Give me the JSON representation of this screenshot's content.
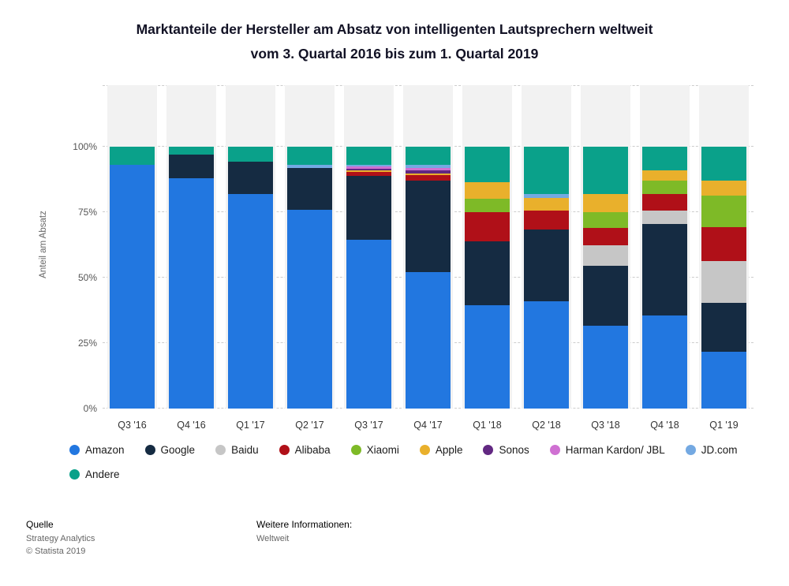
{
  "title": {
    "line1": "Marktanteile der Hersteller am Absatz von intelligenten Lautsprechern weltweit",
    "line2": "vom 3. Quartal 2016 bis zum 1. Quartal 2019"
  },
  "chart_data": {
    "type": "bar",
    "stacked": true,
    "ylabel": "Anteil am Absatz",
    "xlabel": "",
    "ylim": [
      0,
      100
    ],
    "yticks": [
      "0%",
      "25%",
      "50%",
      "75%",
      "100%"
    ],
    "grid": "dashed-horizontal",
    "legend_position": "bottom",
    "categories": [
      "Q3 '16",
      "Q4 '16",
      "Q1 '17",
      "Q2 '17",
      "Q3 '17",
      "Q4 '17",
      "Q1 '18",
      "Q2 '18",
      "Q3 '18",
      "Q4 '18",
      "Q1 '19"
    ],
    "series": [
      {
        "name": "Amazon",
        "color": "#2277e0",
        "values": [
          93,
          88,
          81.8,
          76,
          64.5,
          52,
          39.5,
          41,
          31.5,
          35.5,
          21.7
        ]
      },
      {
        "name": "Google",
        "color": "#152b42",
        "values": [
          0,
          9,
          12.4,
          16,
          24.5,
          35,
          24.5,
          27.5,
          23,
          35,
          18.8
        ]
      },
      {
        "name": "Baidu",
        "color": "#c6c6c6",
        "values": [
          0,
          0,
          0,
          0,
          0,
          0,
          0,
          0,
          8,
          5,
          15.8
        ]
      },
      {
        "name": "Alibaba",
        "color": "#b01018",
        "values": [
          0,
          0,
          0,
          0,
          1.5,
          2.2,
          11,
          7,
          6.5,
          6.5,
          13.1
        ]
      },
      {
        "name": "Xiaomi",
        "color": "#7eba27",
        "values": [
          0,
          0,
          0,
          0,
          0,
          0,
          5,
          0,
          6,
          5,
          11.8
        ]
      },
      {
        "name": "Apple",
        "color": "#e9b02c",
        "values": [
          0,
          0,
          0,
          0,
          0.6,
          0.6,
          6.5,
          5,
          7,
          4,
          5.9
        ]
      },
      {
        "name": "Sonos",
        "color": "#622882",
        "values": [
          0,
          0,
          0,
          0,
          0.5,
          1.2,
          0,
          0,
          0,
          0,
          0
        ]
      },
      {
        "name": "Harman Kardon/ JBL",
        "color": "#cf70d2",
        "values": [
          0,
          0,
          0,
          0,
          0.9,
          1,
          0,
          0,
          0,
          0,
          0
        ]
      },
      {
        "name": "JD.com",
        "color": "#74a9e2",
        "values": [
          0,
          0,
          0,
          1,
          0.5,
          1,
          0,
          1.5,
          0,
          0,
          0
        ]
      },
      {
        "name": "Andere",
        "color": "#0aa18a",
        "values": [
          7,
          3,
          5.8,
          7,
          7,
          7,
          13.5,
          18,
          18,
          9,
          12.9
        ]
      }
    ]
  },
  "footer": {
    "source_label": "Quelle",
    "source_value": "Strategy Analytics",
    "copyright": "© Statista 2019",
    "info_label": "Weitere Informationen:",
    "info_value": "Weltweit"
  }
}
